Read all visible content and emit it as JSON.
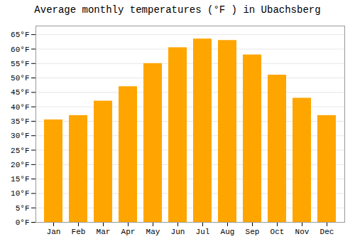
{
  "chart_data": {
    "type": "bar",
    "title": "Average monthly temperatures (°F ) in Ubachsberg",
    "categories": [
      "Jan",
      "Feb",
      "Mar",
      "Apr",
      "May",
      "Jun",
      "Jul",
      "Aug",
      "Sep",
      "Oct",
      "Nov",
      "Dec"
    ],
    "values": [
      35.5,
      37.0,
      42.0,
      47.0,
      55.0,
      60.5,
      63.5,
      63.0,
      58.0,
      51.0,
      43.0,
      37.0
    ],
    "color": "#FFA500",
    "ylim": [
      0,
      68
    ],
    "yticks": [
      {
        "value": 0,
        "label": "0°F"
      },
      {
        "value": 5,
        "label": "5°F"
      },
      {
        "value": 10,
        "label": "10°F"
      },
      {
        "value": 15,
        "label": "15°F"
      },
      {
        "value": 20,
        "label": "20°F"
      },
      {
        "value": 25,
        "label": "25°F"
      },
      {
        "value": 30,
        "label": "30°F"
      },
      {
        "value": 35,
        "label": "35°F"
      },
      {
        "value": 40,
        "label": "40°F"
      },
      {
        "value": 45,
        "label": "45°F"
      },
      {
        "value": 50,
        "label": "50°F"
      },
      {
        "value": 55,
        "label": "55°F"
      },
      {
        "value": 60,
        "label": "60°F"
      },
      {
        "value": 65,
        "label": "65°F"
      }
    ],
    "grid": true
  }
}
